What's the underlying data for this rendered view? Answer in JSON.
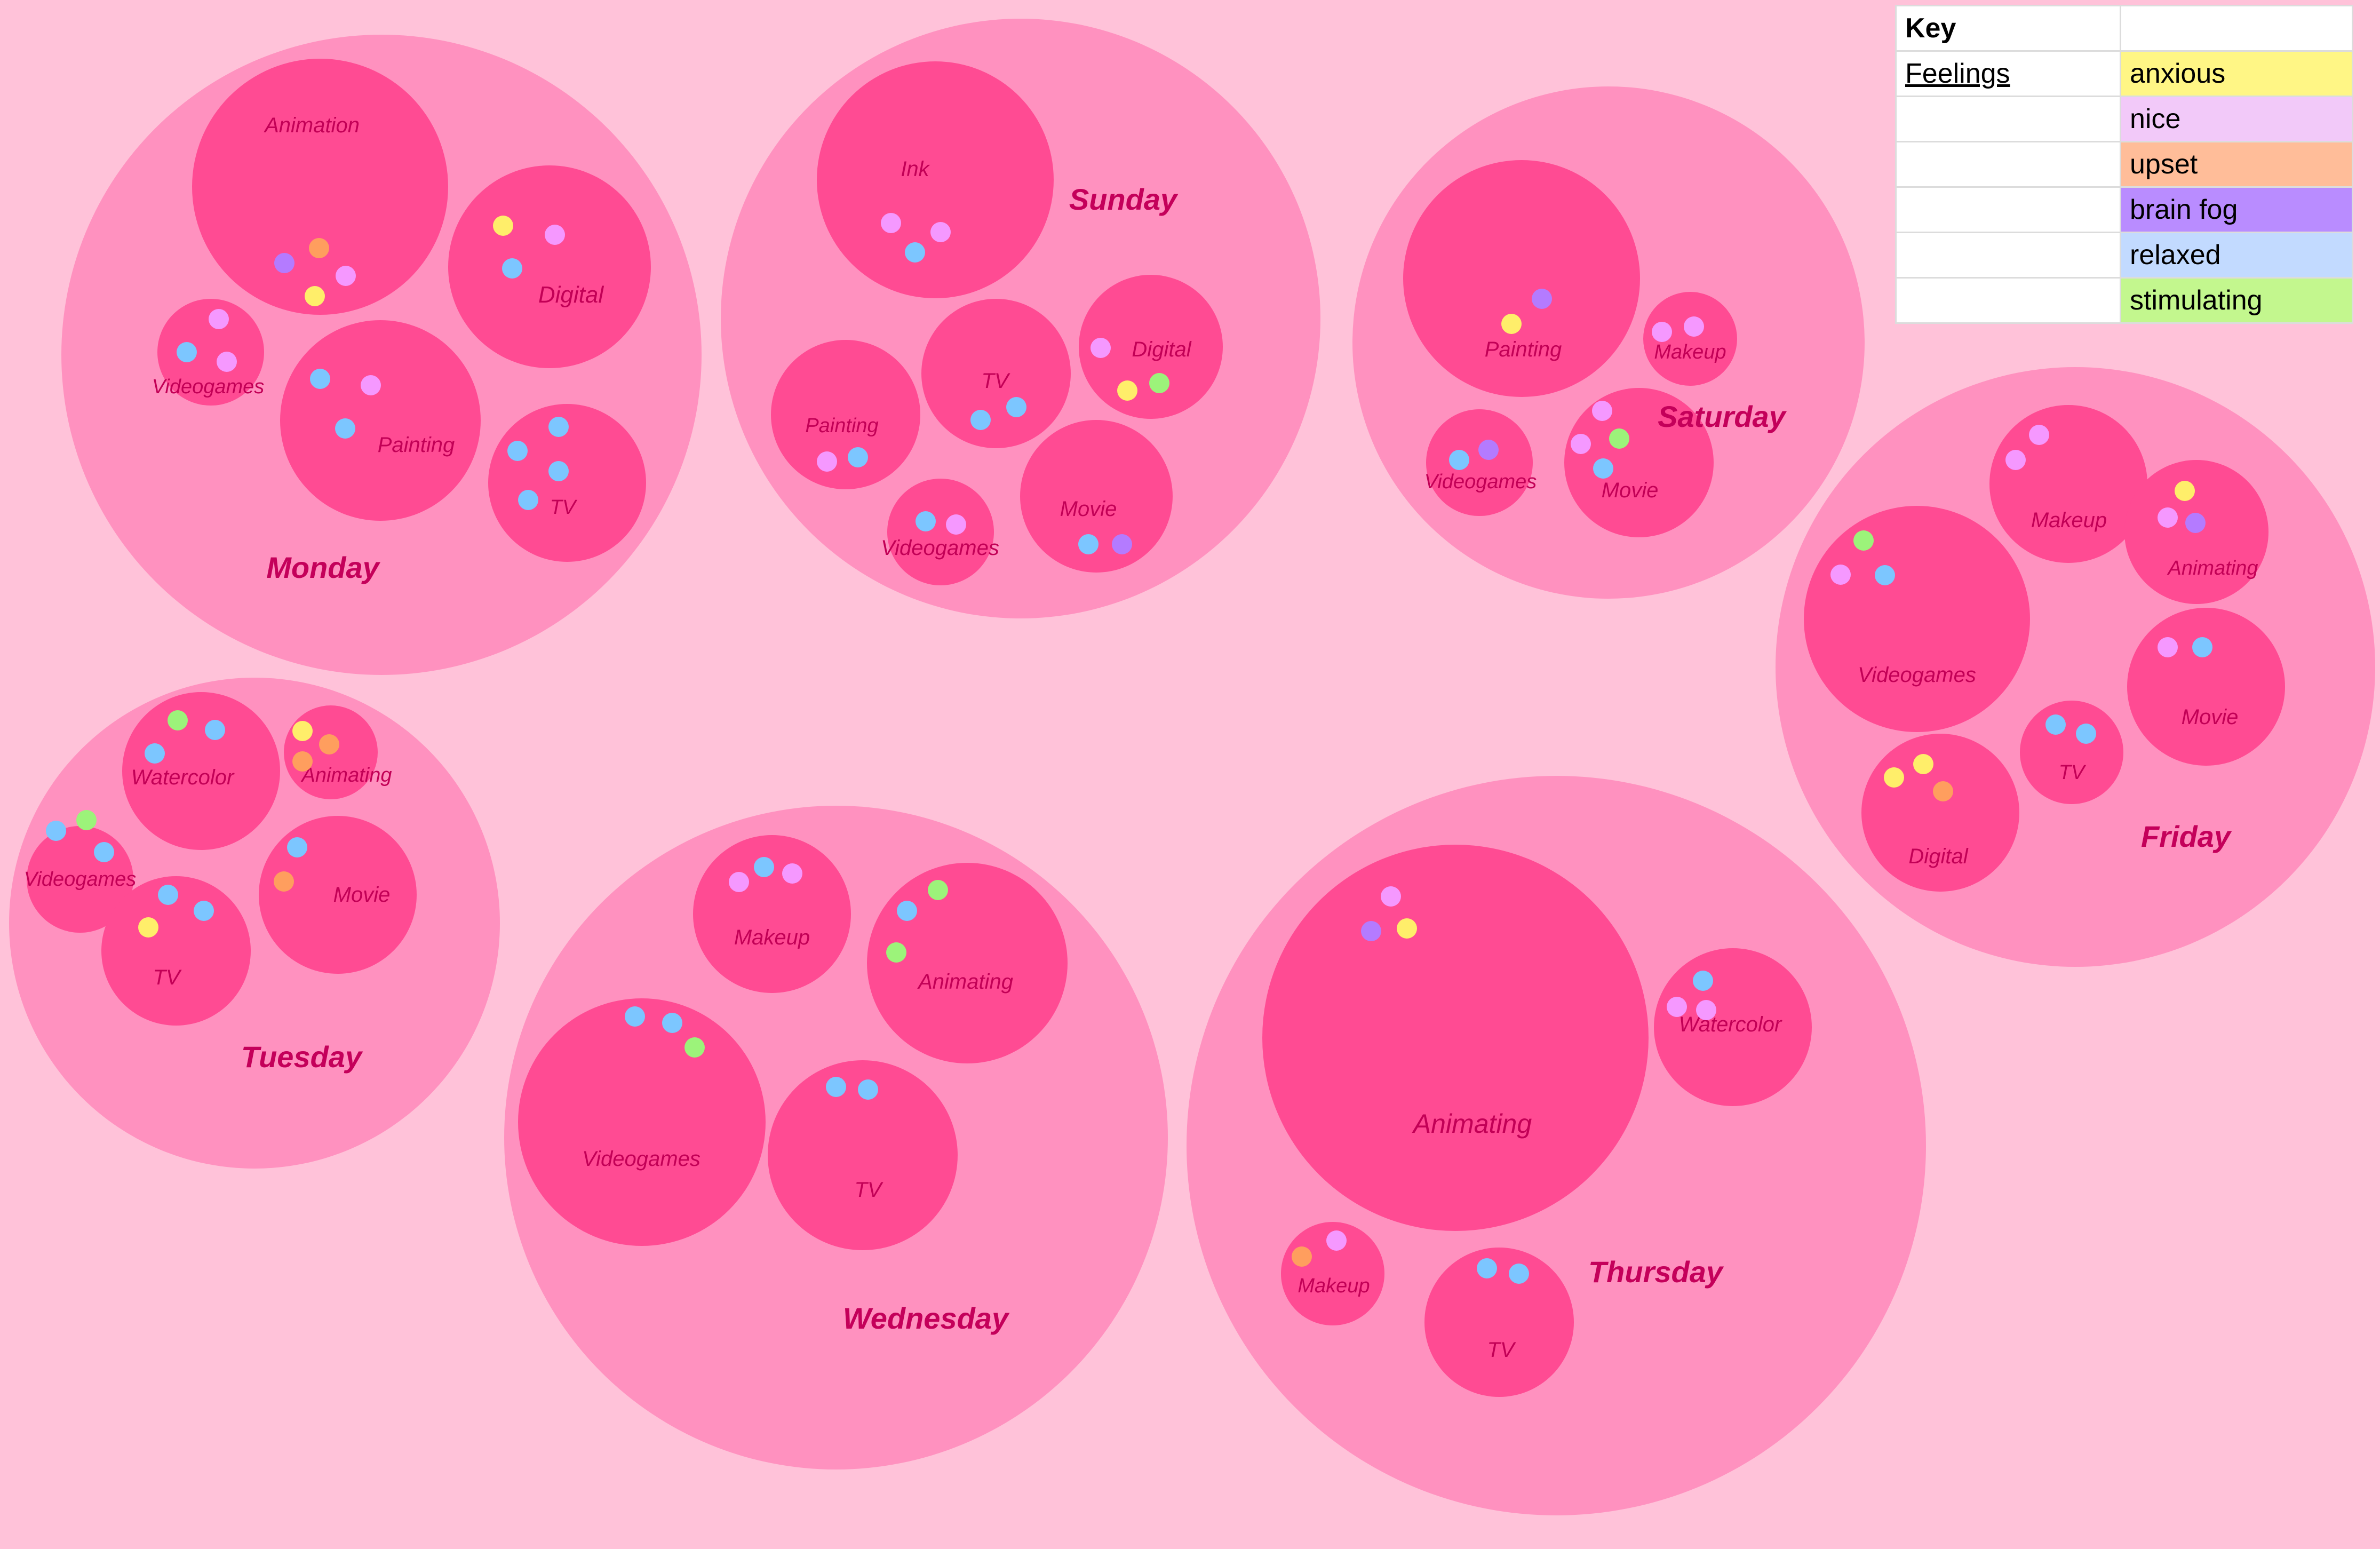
{
  "colors": {
    "background": "#ffc2d9",
    "day_circle": "#ff91bf",
    "activity_circle": "#ff4b93",
    "day_label": "#c4005a",
    "activity_label": "#c20056"
  },
  "feelings": {
    "anxious": "#ffee6a",
    "nice": "#f598ff",
    "upset": "#ff9e5e",
    "brain_fog": "#b47bff",
    "relaxed": "#7cc6ff",
    "stimulating": "#9cf37a"
  },
  "key": {
    "title": "Key",
    "header_label": "Feelings",
    "rows": [
      {
        "id": "anxious",
        "label": "anxious",
        "bg": "#fff685"
      },
      {
        "id": "nice",
        "label": "nice",
        "bg": "#f2c9f9"
      },
      {
        "id": "upset",
        "label": "upset",
        "bg": "#ffbd99"
      },
      {
        "id": "brain_fog",
        "label": "brain fog",
        "bg": "#b98cff"
      },
      {
        "id": "relaxed",
        "label": "relaxed",
        "bg": "#c2daff"
      },
      {
        "id": "stimulating",
        "label": "stimulating",
        "bg": "#c3f78e"
      }
    ]
  },
  "days": [
    {
      "name": "Monday",
      "activities": [
        {
          "name": "Animation",
          "feelings": [
            "brain_fog",
            "upset",
            "nice",
            "anxious"
          ]
        },
        {
          "name": "Digital",
          "feelings": [
            "anxious",
            "nice",
            "relaxed"
          ]
        },
        {
          "name": "Videogames",
          "feelings": [
            "nice",
            "relaxed",
            "nice"
          ]
        },
        {
          "name": "Painting",
          "feelings": [
            "relaxed",
            "nice",
            "relaxed"
          ]
        },
        {
          "name": "TV",
          "feelings": [
            "relaxed",
            "relaxed",
            "relaxed",
            "relaxed"
          ]
        }
      ]
    },
    {
      "name": "Sunday",
      "activities": [
        {
          "name": "Ink",
          "feelings": [
            "nice",
            "nice",
            "relaxed"
          ]
        },
        {
          "name": "Painting",
          "feelings": [
            "nice",
            "relaxed"
          ]
        },
        {
          "name": "TV",
          "feelings": [
            "relaxed",
            "relaxed"
          ]
        },
        {
          "name": "Digital",
          "feelings": [
            "nice",
            "anxious",
            "stimulating"
          ]
        },
        {
          "name": "Videogames",
          "feelings": [
            "relaxed",
            "nice"
          ]
        },
        {
          "name": "Movie",
          "feelings": [
            "relaxed",
            "brain_fog"
          ]
        }
      ]
    },
    {
      "name": "Saturday",
      "activities": [
        {
          "name": "Painting",
          "feelings": [
            "brain_fog",
            "anxious"
          ]
        },
        {
          "name": "Makeup",
          "feelings": [
            "nice",
            "nice"
          ]
        },
        {
          "name": "Videogames",
          "feelings": [
            "relaxed",
            "brain_fog"
          ]
        },
        {
          "name": "Movie",
          "feelings": [
            "nice",
            "nice",
            "stimulating",
            "relaxed"
          ]
        }
      ]
    },
    {
      "name": "Friday",
      "activities": [
        {
          "name": "Makeup",
          "feelings": [
            "nice",
            "nice"
          ]
        },
        {
          "name": "Animating",
          "feelings": [
            "anxious",
            "nice",
            "brain_fog"
          ]
        },
        {
          "name": "Videogames",
          "feelings": [
            "stimulating",
            "nice",
            "relaxed"
          ]
        },
        {
          "name": "Movie",
          "feelings": [
            "nice",
            "relaxed"
          ]
        },
        {
          "name": "TV",
          "feelings": [
            "relaxed",
            "relaxed"
          ]
        },
        {
          "name": "Digital",
          "feelings": [
            "anxious",
            "anxious",
            "upset"
          ]
        }
      ]
    },
    {
      "name": "Tuesday",
      "activities": [
        {
          "name": "Watercolor",
          "feelings": [
            "stimulating",
            "relaxed",
            "relaxed"
          ]
        },
        {
          "name": "Animating",
          "feelings": [
            "anxious",
            "upset",
            "upset"
          ]
        },
        {
          "name": "Videogames",
          "feelings": [
            "relaxed",
            "stimulating",
            "relaxed"
          ]
        },
        {
          "name": "Movie",
          "feelings": [
            "relaxed",
            "upset"
          ]
        },
        {
          "name": "TV",
          "feelings": [
            "relaxed",
            "relaxed",
            "anxious"
          ]
        }
      ]
    },
    {
      "name": "Wednesday",
      "activities": [
        {
          "name": "Makeup",
          "feelings": [
            "nice",
            "relaxed",
            "nice"
          ]
        },
        {
          "name": "Animating",
          "feelings": [
            "relaxed",
            "stimulating",
            "stimulating"
          ]
        },
        {
          "name": "Videogames",
          "feelings": [
            "relaxed",
            "relaxed",
            "stimulating"
          ]
        },
        {
          "name": "TV",
          "feelings": [
            "relaxed",
            "relaxed"
          ]
        }
      ]
    },
    {
      "name": "Thursday",
      "activities": [
        {
          "name": "Animating",
          "feelings": [
            "nice",
            "brain_fog",
            "anxious"
          ]
        },
        {
          "name": "Watercolor",
          "feelings": [
            "relaxed",
            "nice",
            "nice"
          ]
        },
        {
          "name": "Makeup",
          "feelings": [
            "upset",
            "nice"
          ]
        },
        {
          "name": "TV",
          "feelings": [
            "relaxed",
            "relaxed"
          ]
        }
      ]
    }
  ]
}
